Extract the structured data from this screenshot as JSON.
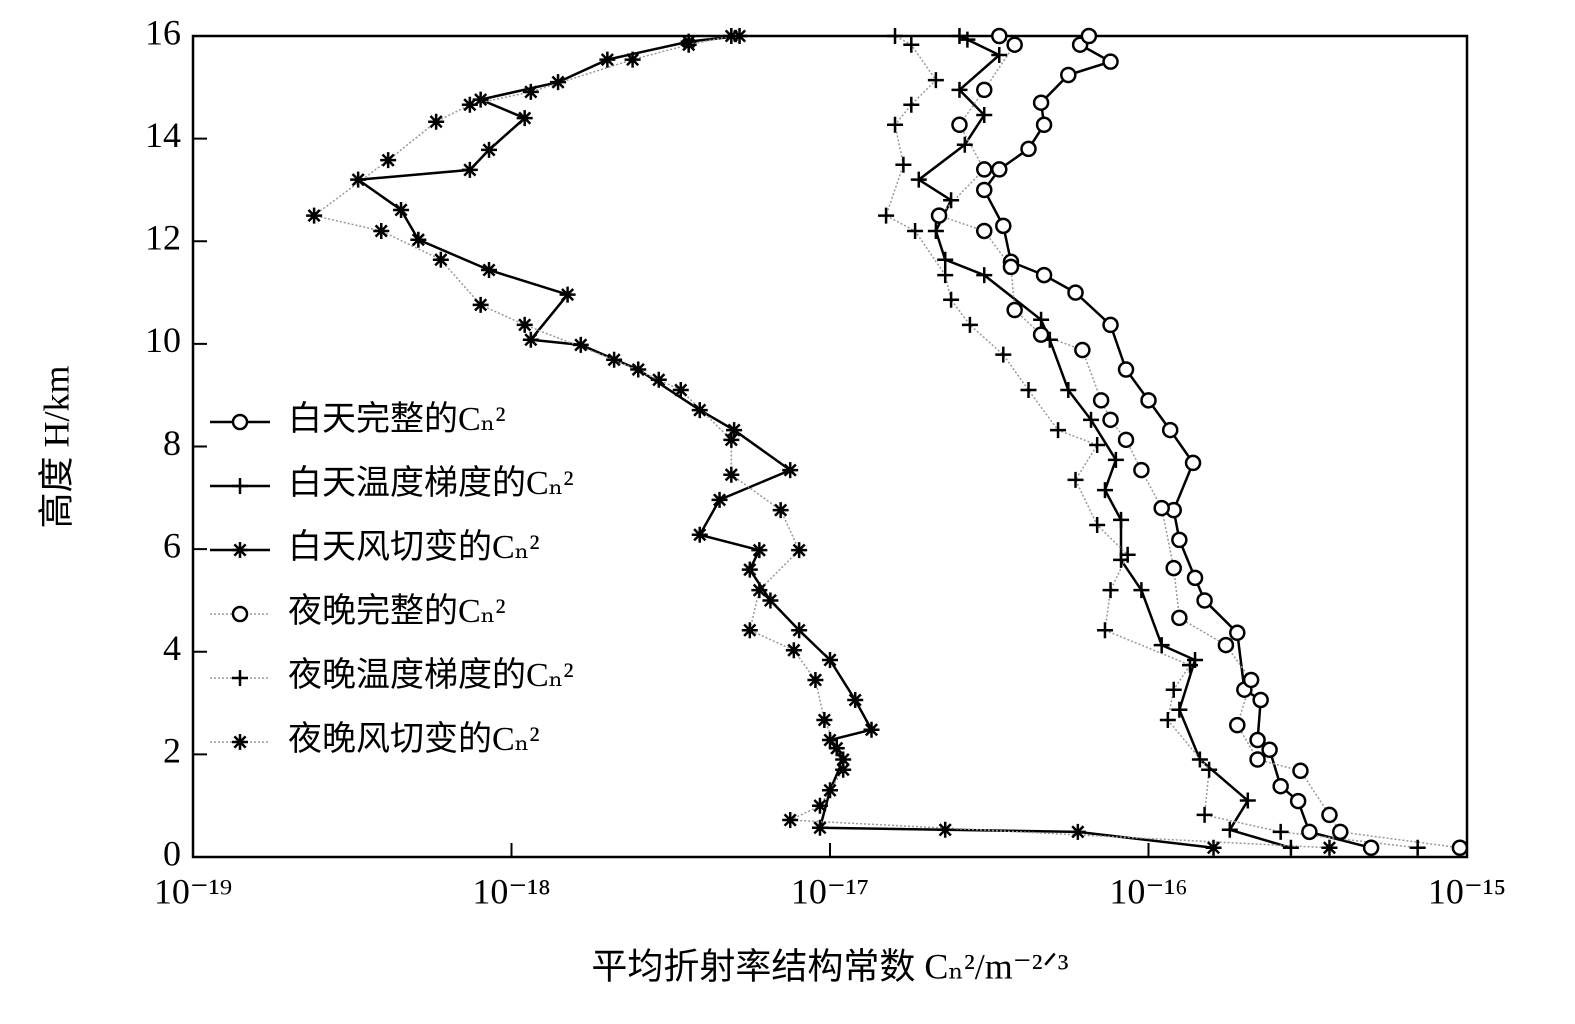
{
  "chart_data": {
    "type": "profile",
    "x_label": "平均折射率结构常数 Cₙ²/m⁻²ᐟ³",
    "y_label": "高度 H/km",
    "x_log": true,
    "xlim": [
      1e-19,
      1e-15
    ],
    "xticks": [
      {
        "value": 1e-19,
        "label": "10⁻¹⁹"
      },
      {
        "value": 1e-18,
        "label": "10⁻¹⁸"
      },
      {
        "value": 1e-17,
        "label": "10⁻¹⁷"
      },
      {
        "value": 1e-16,
        "label": "10⁻¹⁶"
      },
      {
        "value": 1e-15,
        "label": "10⁻¹⁵"
      }
    ],
    "ylim": [
      0,
      16
    ],
    "yticks": [
      0,
      2,
      4,
      6,
      8,
      10,
      12,
      14,
      16
    ],
    "legend": "left",
    "series": [
      {
        "name": "白天完整的Cₙ²",
        "color": "#000000",
        "line_style": "solid",
        "marker": "circle",
        "heights": [
          0.18,
          0.49,
          1.09,
          1.38,
          2.09,
          2.28,
          3.06,
          3.26,
          4.37,
          5.0,
          5.44,
          6.18,
          6.76,
          7.68,
          8.32,
          8.9,
          9.5,
          10.37,
          11.0,
          11.34,
          11.6,
          12.3,
          13.0,
          13.4,
          13.8,
          14.27,
          14.7,
          15.24,
          15.5,
          15.83,
          16
        ],
        "values": [
          5e-16,
          3.2e-16,
          2.95e-16,
          2.6e-16,
          2.4e-16,
          2.2e-16,
          2.25e-16,
          2e-16,
          1.9e-16,
          1.5e-16,
          1.4e-16,
          1.25e-16,
          1.2e-16,
          1.38e-16,
          1.17e-16,
          1e-16,
          8.5e-17,
          7.6e-17,
          5.9e-17,
          4.7e-17,
          3.7e-17,
          3.5e-17,
          3.05e-17,
          3.4e-17,
          4.2e-17,
          4.7e-17,
          4.6e-17,
          5.6e-17,
          7.6e-17,
          6.1e-17,
          6.5e-17
        ]
      },
      {
        "name": "白天温度梯度的Cₙ²",
        "color": "#000000",
        "line_style": "solid",
        "marker": "plus",
        "heights": [
          0.18,
          0.53,
          1.1,
          1.9,
          2.87,
          3.84,
          4.13,
          5.2,
          5.79,
          6.57,
          7.15,
          7.74,
          8.52,
          9.1,
          10.08,
          10.47,
          11.34,
          11.64,
          12.2,
          12.8,
          13.2,
          13.88,
          14.46,
          14.95,
          15.63,
          15.93,
          16
        ],
        "values": [
          2.8e-16,
          1.8e-16,
          2.05e-16,
          1.45e-16,
          1.25e-16,
          1.4e-16,
          1.1e-16,
          9.5e-17,
          8.2e-17,
          8.2e-17,
          7.3e-17,
          7.9e-17,
          6.6e-17,
          5.6e-17,
          4.9e-17,
          4.6e-17,
          3.05e-17,
          2.3e-17,
          2.15e-17,
          2.4e-17,
          1.9e-17,
          2.65e-17,
          3.05e-17,
          2.55e-17,
          3.4e-17,
          2.7e-17,
          2.55e-17
        ]
      },
      {
        "name": "白天风切变的Cₙ²",
        "color": "#000000",
        "line_style": "solid",
        "marker": "asterisk",
        "heights": [
          0.18,
          0.49,
          0.53,
          0.57,
          1.3,
          1.9,
          2.28,
          2.48,
          3.06,
          3.84,
          4.42,
          5.0,
          5.6,
          5.98,
          6.28,
          6.96,
          7.54,
          8.32,
          8.71,
          9.5,
          9.98,
          10.08,
          10.96,
          11.44,
          12.03,
          12.61,
          13.2,
          13.39,
          13.78,
          14.4,
          14.76,
          15.1,
          15.54,
          15.89,
          16
        ],
        "values": [
          1.6e-16,
          6e-17,
          2.3e-17,
          9.3e-18,
          1e-17,
          1.1e-17,
          1e-17,
          1.35e-17,
          1.2e-17,
          1e-17,
          8e-18,
          6.5e-18,
          5.6e-18,
          6e-18,
          3.9e-18,
          4.5e-18,
          7.5e-18,
          5e-18,
          3.9e-18,
          2.5e-18,
          1.65e-18,
          1.15e-18,
          1.5e-18,
          8.5e-19,
          5.1e-19,
          4.5e-19,
          3.3e-19,
          7.4e-19,
          8.5e-19,
          1.1e-18,
          8e-19,
          1.4e-18,
          2e-18,
          3.6e-18,
          5.2e-18
        ]
      },
      {
        "name": "夜晚完整的Cₙ²",
        "color": "#999999",
        "line_style": "dotted",
        "marker": "circle",
        "heights": [
          0.18,
          0.49,
          0.82,
          1.68,
          1.9,
          2.57,
          3.45,
          4.13,
          4.66,
          5.63,
          6.8,
          7.54,
          8.13,
          8.52,
          8.9,
          9.88,
          10.18,
          10.66,
          11.5,
          12.2,
          12.5,
          13.4,
          14.27,
          14.95,
          15.83,
          16
        ],
        "values": [
          9.5e-16,
          4e-16,
          3.7e-16,
          3e-16,
          2.2e-16,
          1.9e-16,
          2.1e-16,
          1.75e-16,
          1.25e-16,
          1.2e-16,
          1.1e-16,
          9.5e-17,
          8.5e-17,
          7.6e-17,
          7.1e-17,
          6.2e-17,
          4.6e-17,
          3.8e-17,
          3.7e-17,
          3.05e-17,
          2.2e-17,
          3.05e-17,
          2.55e-17,
          3.05e-17,
          3.8e-17,
          3.4e-17
        ]
      },
      {
        "name": "夜晚温度梯度的Cₙ²",
        "color": "#999999",
        "line_style": "dotted",
        "marker": "plus",
        "heights": [
          0.18,
          0.49,
          0.82,
          1.7,
          2.67,
          3.26,
          3.74,
          4.42,
          5.2,
          5.89,
          6.47,
          7.35,
          8.03,
          8.32,
          9.1,
          9.79,
          10.37,
          10.86,
          11.34,
          12.2,
          12.5,
          13.49,
          14.27,
          14.66,
          15.14,
          15.83,
          16
        ],
        "values": [
          7e-16,
          2.6e-16,
          1.5e-16,
          1.55e-16,
          1.15e-16,
          1.2e-16,
          1.35e-16,
          7.3e-17,
          7.6e-17,
          8.6e-17,
          6.9e-17,
          5.9e-17,
          6.9e-17,
          5.2e-17,
          4.2e-17,
          3.5e-17,
          2.75e-17,
          2.4e-17,
          2.3e-17,
          1.85e-17,
          1.5e-17,
          1.7e-17,
          1.6e-17,
          1.8e-17,
          2.15e-17,
          1.8e-17,
          1.6e-17
        ]
      },
      {
        "name": "夜晚风切变的Cₙ²",
        "color": "#999999",
        "line_style": "dotted",
        "marker": "asterisk",
        "heights": [
          0.18,
          0.72,
          1.0,
          1.7,
          2.12,
          2.67,
          3.45,
          4.03,
          4.42,
          5.2,
          5.98,
          6.76,
          7.45,
          8.13,
          9.1,
          9.3,
          9.69,
          10.37,
          10.76,
          11.64,
          12.2,
          12.5,
          13.58,
          14.33,
          14.66,
          14.91,
          15.54,
          15.83,
          16
        ],
        "values": [
          3.7e-16,
          7.5e-18,
          9.3e-18,
          1.1e-17,
          1.05e-17,
          9.6e-18,
          9e-18,
          7.7e-18,
          5.6e-18,
          6e-18,
          8e-18,
          7e-18,
          4.9e-18,
          4.9e-18,
          3.4e-18,
          2.9e-18,
          2.1e-18,
          1.1e-18,
          8e-19,
          6e-19,
          3.9e-19,
          2.4e-19,
          4.1e-19,
          5.8e-19,
          7.4e-19,
          1.15e-18,
          2.4e-18,
          3.6e-18,
          4.9e-18
        ]
      }
    ]
  }
}
